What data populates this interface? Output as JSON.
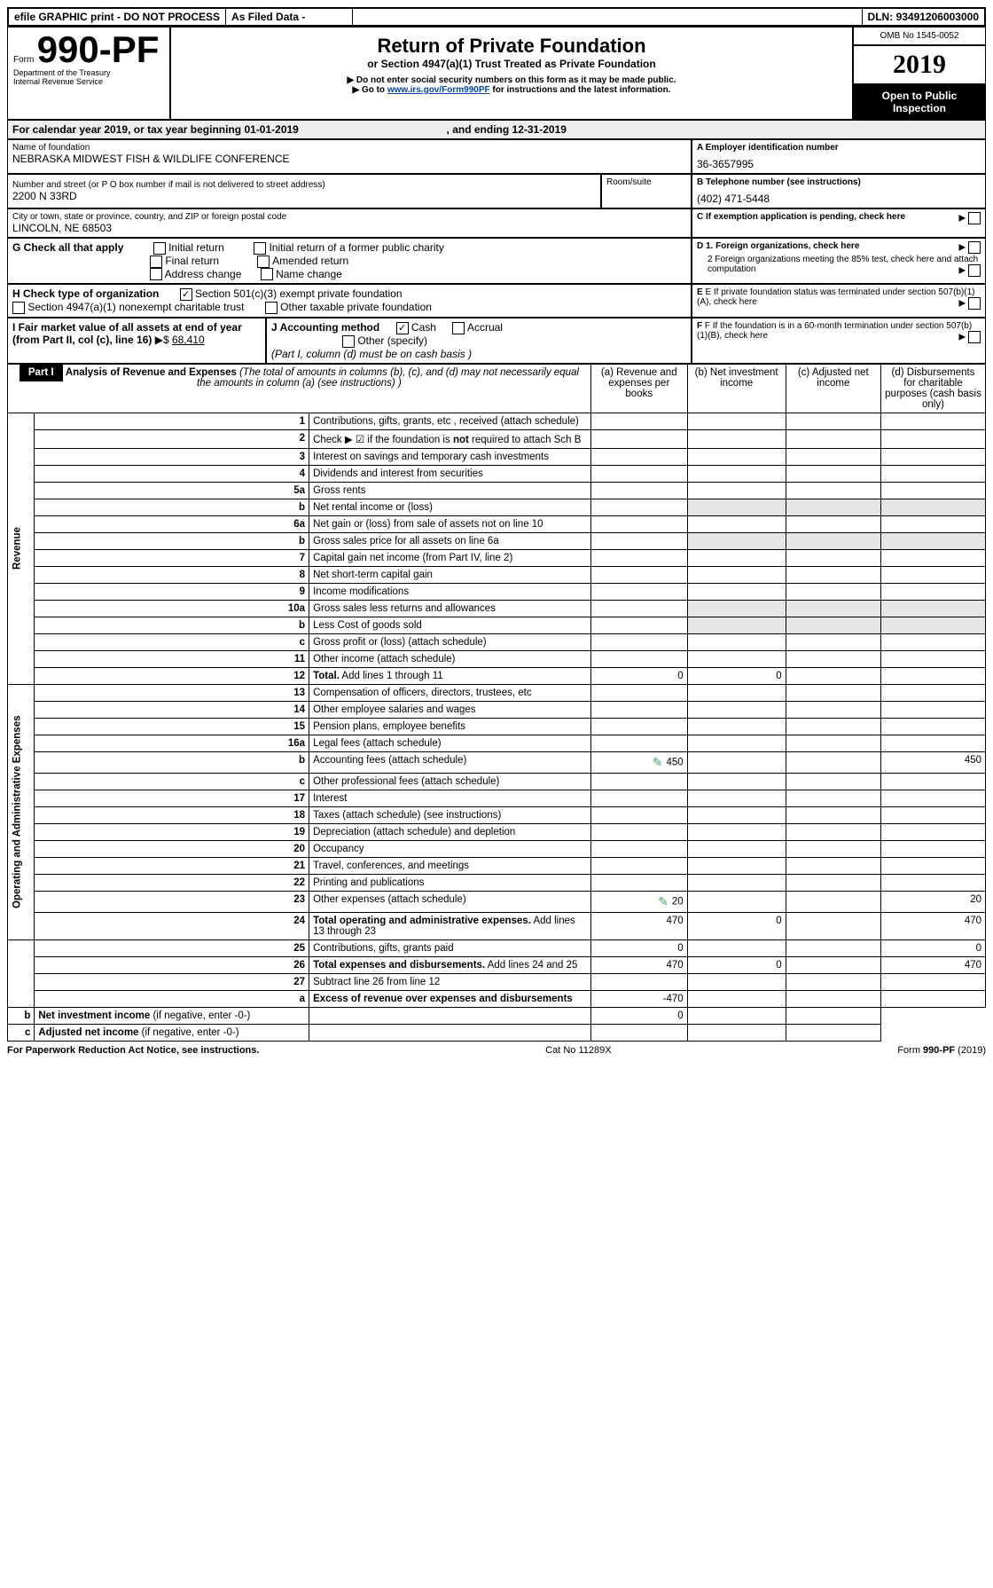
{
  "topbar": {
    "efile": "efile GRAPHIC print - DO NOT PROCESS",
    "asfiled": "As Filed Data -",
    "dln_label": "DLN:",
    "dln": "93491206003000"
  },
  "header": {
    "form_prefix": "Form",
    "form_num": "990-PF",
    "dept": "Department of the Treasury",
    "irs": "Internal Revenue Service",
    "title": "Return of Private Foundation",
    "subtitle": "or Section 4947(a)(1) Trust Treated as Private Foundation",
    "bullet1": "▶ Do not enter social security numbers on this form as it may be made public.",
    "bullet2_pre": "▶ Go to ",
    "bullet2_link": "www.irs.gov/Form990PF",
    "bullet2_post": " for instructions and the latest information.",
    "omb": "OMB No 1545-0052",
    "year": "2019",
    "open": "Open to Public Inspection"
  },
  "calyear": {
    "pre": "For calendar year 2019, or tax year beginning ",
    "begin": "01-01-2019",
    "mid": " , and ending ",
    "end": "12-31-2019"
  },
  "info": {
    "name_label": "Name of foundation",
    "name": "NEBRASKA MIDWEST FISH & WILDLIFE CONFERENCE",
    "A_label": "A Employer identification number",
    "A_val": "36-3657995",
    "street_label": "Number and street (or P O  box number if mail is not delivered to street address)",
    "room_label": "Room/suite",
    "street": "2200 N 33RD",
    "B_label": "B Telephone number (see instructions)",
    "B_val": "(402) 471-5448",
    "city_label": "City or town, state or province, country, and ZIP or foreign postal code",
    "city": "LINCOLN, NE  68503",
    "C_label": "C If exemption application is pending, check here",
    "G_label": "G Check all that apply",
    "G_opts": [
      "Initial return",
      "Initial return of a former public charity",
      "Final return",
      "Amended return",
      "Address change",
      "Name change"
    ],
    "D1": "D 1. Foreign organizations, check here",
    "D2a": "2 Foreign organizations meeting the 85% test, check here and attach computation",
    "H_label": "H Check type of organization",
    "H1": "Section 501(c)(3) exempt private foundation",
    "H2": "Section 4947(a)(1) nonexempt charitable trust",
    "H3": "Other taxable private foundation",
    "E": "E  If private foundation status was terminated under section 507(b)(1)(A), check here",
    "I_label": "I Fair market value of all assets at end of year (from Part II, col  (c), line 16)",
    "I_val": "68,410",
    "J_label": "J Accounting method",
    "J_cash": "Cash",
    "J_accrual": "Accrual",
    "J_other": "Other (specify)",
    "J_note": "(Part I, column (d) must be on cash basis )",
    "F": "F  If the foundation is in a 60-month termination under section 507(b)(1)(B), check here"
  },
  "part1": {
    "label": "Part I",
    "title": "Analysis of Revenue and Expenses",
    "title_note": " (The total of amounts in columns (b), (c), and (d) may not necessarily equal the amounts in column (a) (see instructions) )",
    "col_a": "(a)  Revenue and expenses per books",
    "col_b": "(b) Net investment income",
    "col_c": "(c) Adjusted net income",
    "col_d": "(d) Disbursements for charitable purposes (cash basis only)",
    "rev_label": "Revenue",
    "exp_label": "Operating and Administrative Expenses",
    "rows": [
      {
        "n": "1",
        "t": "Contributions, gifts, grants, etc , received (attach schedule)"
      },
      {
        "n": "2",
        "t": "Check ▶ ☑ if the foundation is <b>not</b> required to attach Sch  B"
      },
      {
        "n": "3",
        "t": "Interest on savings and temporary cash investments"
      },
      {
        "n": "4",
        "t": "Dividends and interest from securities"
      },
      {
        "n": "5a",
        "t": "Gross rents"
      },
      {
        "n": "b",
        "t": "Net rental income or (loss)"
      },
      {
        "n": "6a",
        "t": "Net gain or (loss) from sale of assets not on line 10"
      },
      {
        "n": "b",
        "t": "Gross sales price for all assets on line 6a"
      },
      {
        "n": "7",
        "t": "Capital gain net income (from Part IV, line 2)"
      },
      {
        "n": "8",
        "t": "Net short-term capital gain"
      },
      {
        "n": "9",
        "t": "Income modifications"
      },
      {
        "n": "10a",
        "t": "Gross sales less returns and allowances"
      },
      {
        "n": "b",
        "t": "Less  Cost of goods sold"
      },
      {
        "n": "c",
        "t": "Gross profit or (loss) (attach schedule)"
      },
      {
        "n": "11",
        "t": "Other income (attach schedule)"
      },
      {
        "n": "12",
        "t": "<b>Total.</b> Add lines 1 through 11",
        "a": "0",
        "b": "0"
      },
      {
        "n": "13",
        "t": "Compensation of officers, directors, trustees, etc"
      },
      {
        "n": "14",
        "t": "Other employee salaries and wages"
      },
      {
        "n": "15",
        "t": "Pension plans, employee benefits"
      },
      {
        "n": "16a",
        "t": "Legal fees (attach schedule)"
      },
      {
        "n": "b",
        "t": "Accounting fees (attach schedule)",
        "icon": true,
        "a": "450",
        "d": "450"
      },
      {
        "n": "c",
        "t": "Other professional fees (attach schedule)"
      },
      {
        "n": "17",
        "t": "Interest"
      },
      {
        "n": "18",
        "t": "Taxes (attach schedule) (see instructions)"
      },
      {
        "n": "19",
        "t": "Depreciation (attach schedule) and depletion"
      },
      {
        "n": "20",
        "t": "Occupancy"
      },
      {
        "n": "21",
        "t": "Travel, conferences, and meetings"
      },
      {
        "n": "22",
        "t": "Printing and publications"
      },
      {
        "n": "23",
        "t": "Other expenses (attach schedule)",
        "icon": true,
        "a": "20",
        "d": "20"
      },
      {
        "n": "24",
        "t": "<b>Total operating and administrative expenses.</b> Add lines 13 through 23",
        "a": "470",
        "b": "0",
        "d": "470"
      },
      {
        "n": "25",
        "t": "Contributions, gifts, grants paid",
        "a": "0",
        "d": "0"
      },
      {
        "n": "26",
        "t": "<b>Total expenses and disbursements.</b> Add lines 24 and 25",
        "a": "470",
        "b": "0",
        "d": "470"
      },
      {
        "n": "27",
        "t": "Subtract line 26 from line 12"
      },
      {
        "n": "a",
        "t": "<b>Excess of revenue over expenses and disbursements</b>",
        "a": "-470"
      },
      {
        "n": "b",
        "t": "<b>Net investment income</b> (if negative, enter -0-)",
        "b": "0"
      },
      {
        "n": "c",
        "t": "<b>Adjusted net income</b> (if negative, enter -0-)"
      }
    ]
  },
  "footer": {
    "left": "For Paperwork Reduction Act Notice, see instructions.",
    "mid": "Cat  No  11289X",
    "right": "Form 990-PF (2019)"
  },
  "layout": {
    "rev_rowspan": 16,
    "exp_rowspan": 14,
    "last_rowspan": 4,
    "grey_cells": {
      "5_b": [
        "b",
        "c",
        "d"
      ],
      "6a_bcd": []
    }
  }
}
